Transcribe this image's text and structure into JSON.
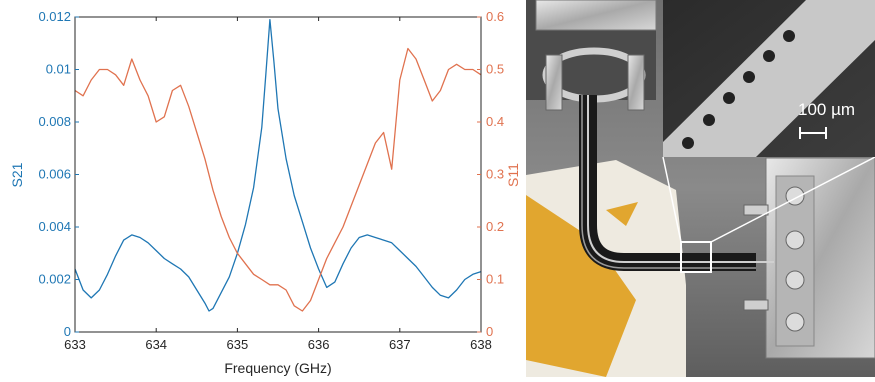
{
  "chart_data": {
    "type": "line",
    "xlabel": "Frequency (GHz)",
    "ylabel_left": "S21",
    "ylabel_right": "S11",
    "xlim": [
      633,
      638
    ],
    "ylim_left": [
      0,
      0.012
    ],
    "ylim_right": [
      0,
      0.6
    ],
    "x_ticks": [
      "633",
      "634",
      "635",
      "636",
      "637",
      "638"
    ],
    "y_left_ticks": [
      "0",
      "0.002",
      "0.004",
      "0.006",
      "0.008",
      "0.01",
      "0.012"
    ],
    "y_right_ticks": [
      "0",
      "0.1",
      "0.2",
      "0.3",
      "0.4",
      "0.5",
      "0.6"
    ],
    "grid": false,
    "series": [
      {
        "name": "S21",
        "axis": "left",
        "color": "#1f77b4",
        "x": [
          633.0,
          633.1,
          633.2,
          633.3,
          633.4,
          633.5,
          633.6,
          633.7,
          633.8,
          633.9,
          634.0,
          634.1,
          634.2,
          634.3,
          634.4,
          634.5,
          634.6,
          634.65,
          634.7,
          634.8,
          634.9,
          635.0,
          635.1,
          635.2,
          635.3,
          635.35,
          635.4,
          635.45,
          635.5,
          635.6,
          635.7,
          635.8,
          635.9,
          636.0,
          636.1,
          636.2,
          636.3,
          636.4,
          636.5,
          636.6,
          636.7,
          636.8,
          636.9,
          637.0,
          637.1,
          637.2,
          637.3,
          637.4,
          637.5,
          637.6,
          637.7,
          637.8,
          637.9,
          638.0
        ],
        "y": [
          0.0024,
          0.0016,
          0.0013,
          0.0016,
          0.0022,
          0.0029,
          0.0035,
          0.0037,
          0.0036,
          0.0034,
          0.0031,
          0.0028,
          0.0026,
          0.0024,
          0.0021,
          0.0016,
          0.0011,
          0.0008,
          0.0009,
          0.0015,
          0.0021,
          0.003,
          0.0041,
          0.0055,
          0.0078,
          0.0098,
          0.0119,
          0.0103,
          0.0085,
          0.0066,
          0.0052,
          0.0042,
          0.0032,
          0.0024,
          0.0017,
          0.0019,
          0.0026,
          0.0032,
          0.0036,
          0.0037,
          0.0036,
          0.0035,
          0.0034,
          0.0031,
          0.0028,
          0.0025,
          0.0021,
          0.0017,
          0.0014,
          0.0013,
          0.0016,
          0.002,
          0.0022,
          0.0023
        ]
      },
      {
        "name": "S11",
        "axis": "right",
        "color": "#e0724f",
        "x": [
          633.0,
          633.1,
          633.2,
          633.3,
          633.4,
          633.5,
          633.6,
          633.7,
          633.75,
          633.8,
          633.9,
          634.0,
          634.1,
          634.2,
          634.3,
          634.4,
          634.5,
          634.6,
          634.7,
          634.8,
          634.9,
          635.0,
          635.1,
          635.2,
          635.3,
          635.4,
          635.5,
          635.6,
          635.7,
          635.8,
          635.9,
          636.0,
          636.1,
          636.2,
          636.3,
          636.4,
          636.5,
          636.6,
          636.7,
          636.8,
          636.9,
          637.0,
          637.1,
          637.2,
          637.3,
          637.4,
          637.5,
          637.6,
          637.7,
          637.8,
          637.9,
          638.0
        ],
        "y": [
          0.46,
          0.45,
          0.48,
          0.5,
          0.5,
          0.49,
          0.47,
          0.52,
          0.5,
          0.48,
          0.45,
          0.4,
          0.41,
          0.46,
          0.47,
          0.43,
          0.38,
          0.33,
          0.27,
          0.22,
          0.18,
          0.15,
          0.13,
          0.11,
          0.1,
          0.09,
          0.09,
          0.08,
          0.05,
          0.04,
          0.06,
          0.1,
          0.14,
          0.17,
          0.2,
          0.24,
          0.28,
          0.32,
          0.36,
          0.38,
          0.31,
          0.48,
          0.54,
          0.52,
          0.48,
          0.44,
          0.46,
          0.5,
          0.51,
          0.5,
          0.5,
          0.49
        ]
      }
    ]
  },
  "photo": {
    "scale_label": "100 µm"
  }
}
